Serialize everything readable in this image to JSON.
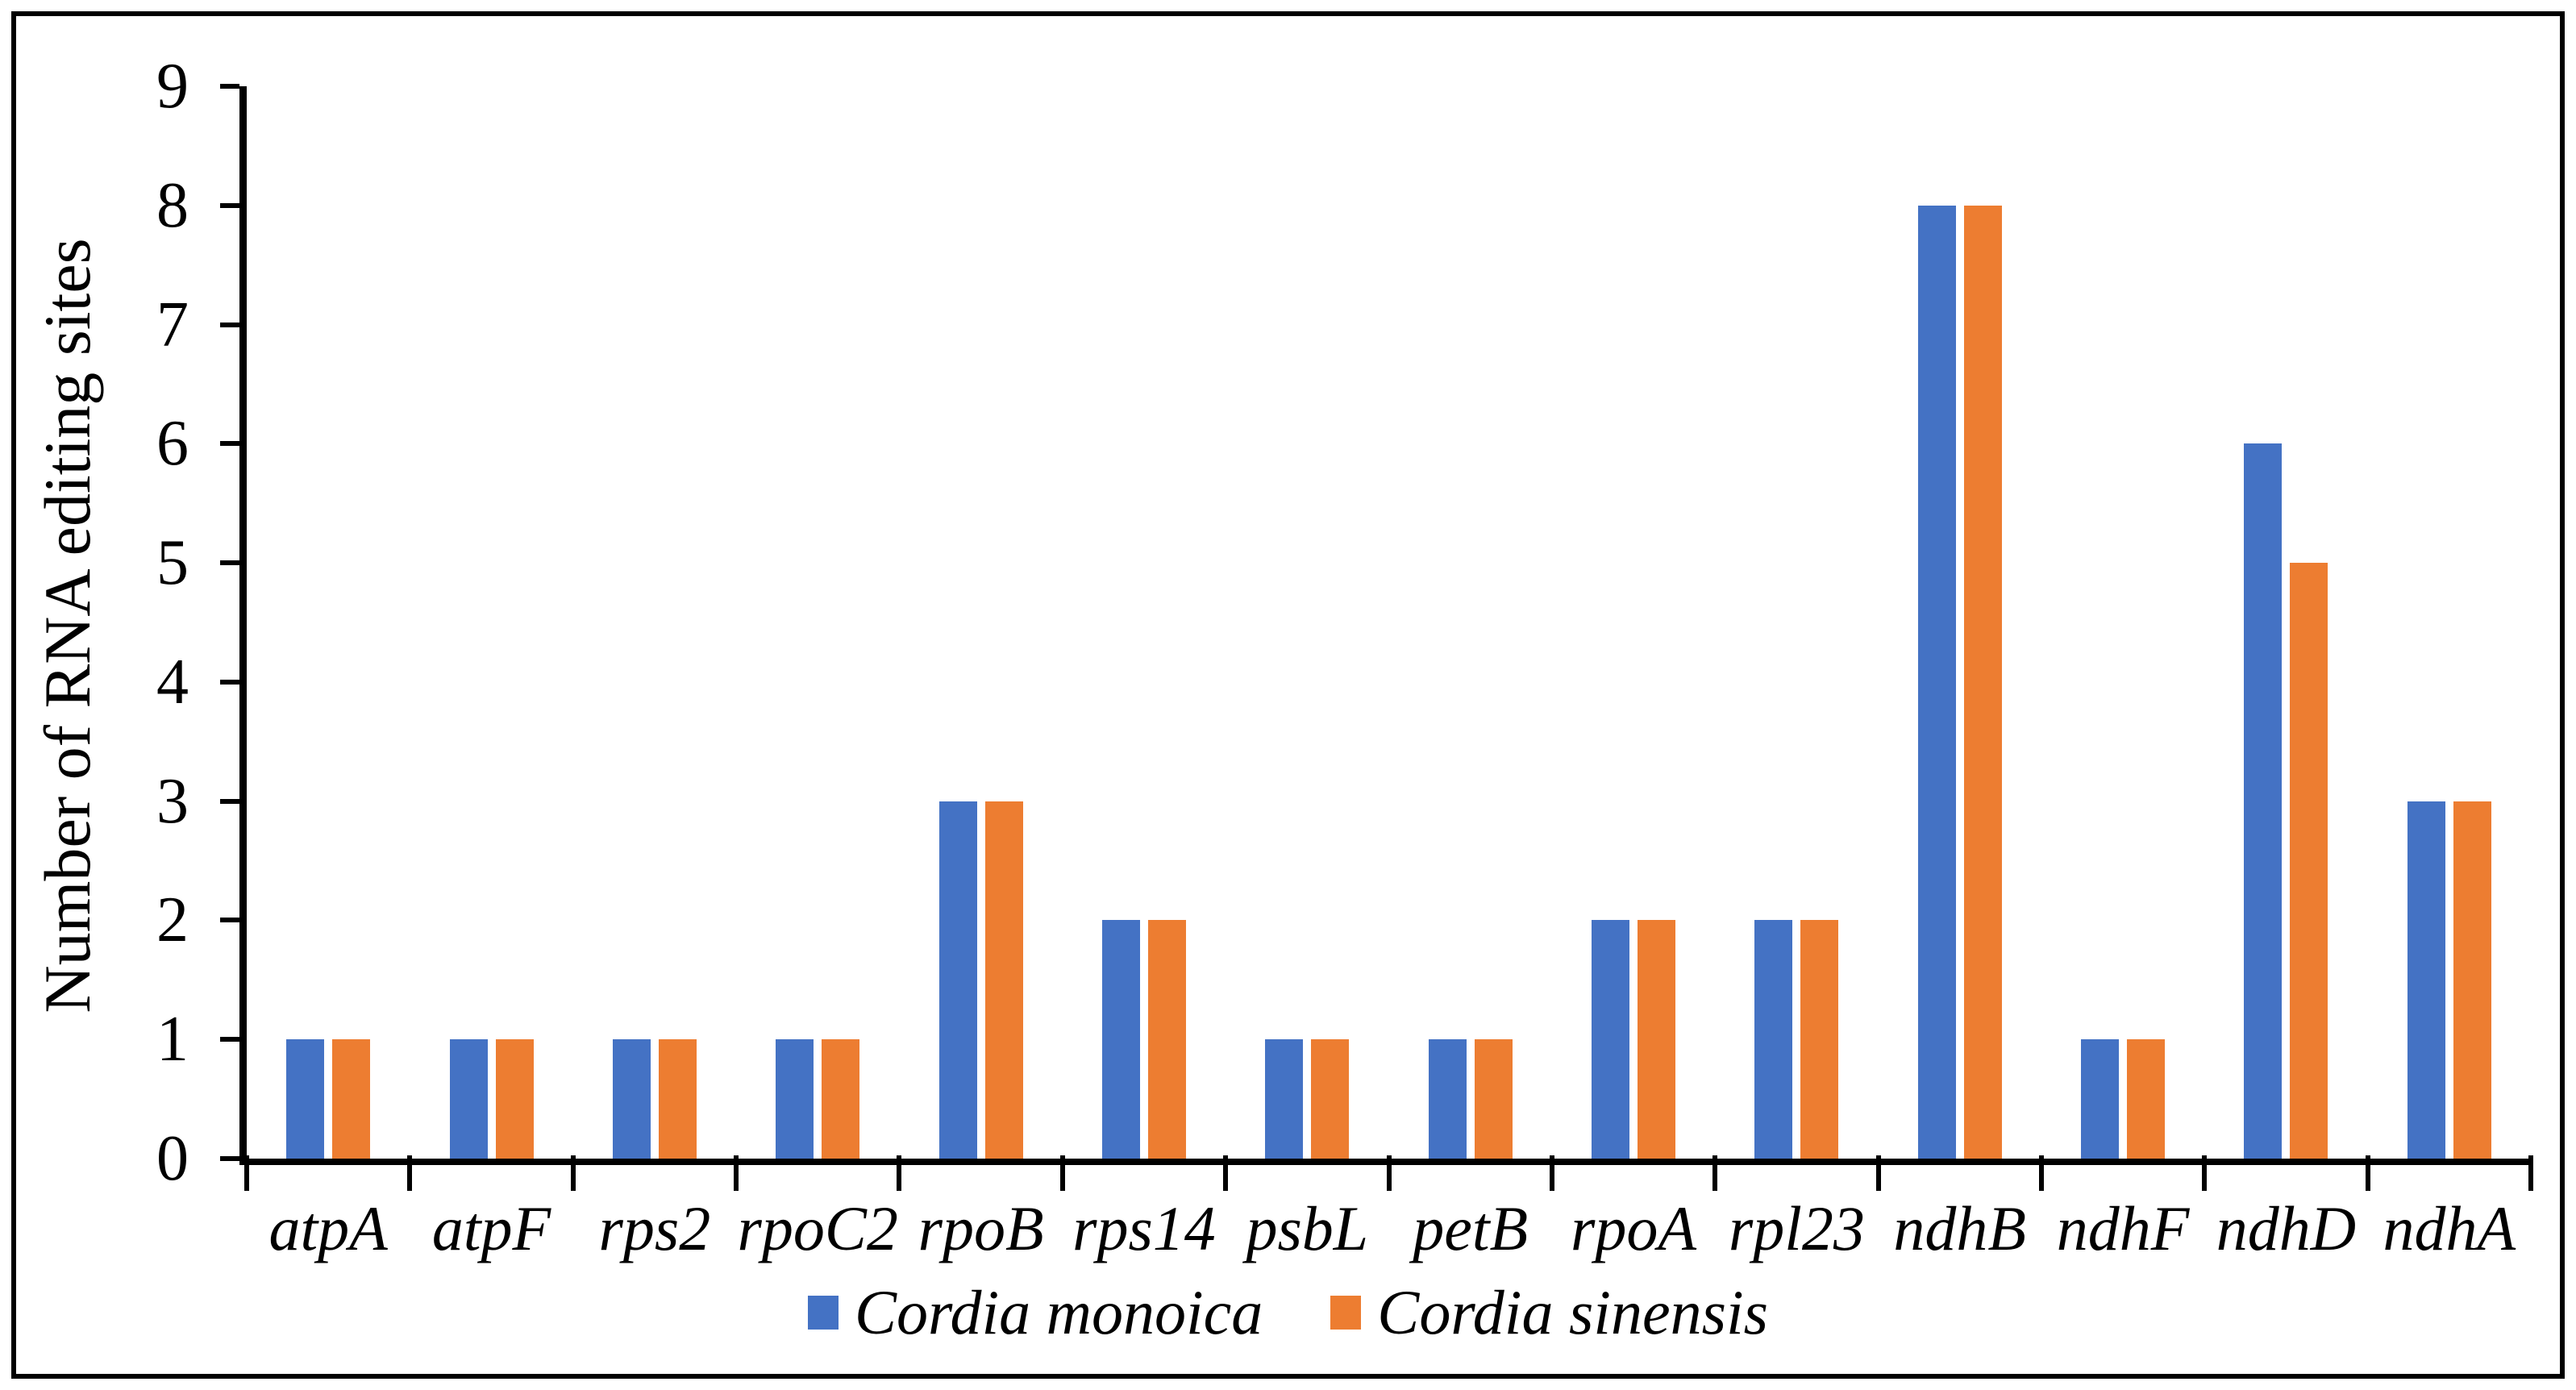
{
  "figure": {
    "background_color": "#FFFFFF",
    "border_color": "#000000"
  },
  "chart_data": {
    "type": "bar",
    "title": "",
    "xlabel": "",
    "ylabel": "Number of RNA editing sites",
    "categories": [
      "atpA",
      "atpF",
      "rps2",
      "rpoC2",
      "rpoB",
      "rps14",
      "psbL",
      "petB",
      "rpoA",
      "rpl23",
      "ndhB",
      "ndhF",
      "ndhD",
      "ndhA"
    ],
    "series": [
      {
        "name": "Cordia monoica",
        "color": "#4472C4",
        "values": [
          1,
          1,
          1,
          1,
          3,
          2,
          1,
          1,
          2,
          2,
          8,
          1,
          6,
          3
        ]
      },
      {
        "name": "Cordia sinensis",
        "color": "#ED7D31",
        "values": [
          1,
          1,
          1,
          1,
          3,
          2,
          1,
          1,
          2,
          2,
          8,
          1,
          5,
          3
        ]
      }
    ],
    "ylim": [
      0,
      9
    ],
    "yticks": [
      0,
      1,
      2,
      3,
      4,
      5,
      6,
      7,
      8,
      9
    ],
    "grid": false,
    "legend_position": "bottom",
    "axis_color": "#000000",
    "text_color": "#000000",
    "category_labels_italic": true,
    "legend_labels_italic": true
  }
}
